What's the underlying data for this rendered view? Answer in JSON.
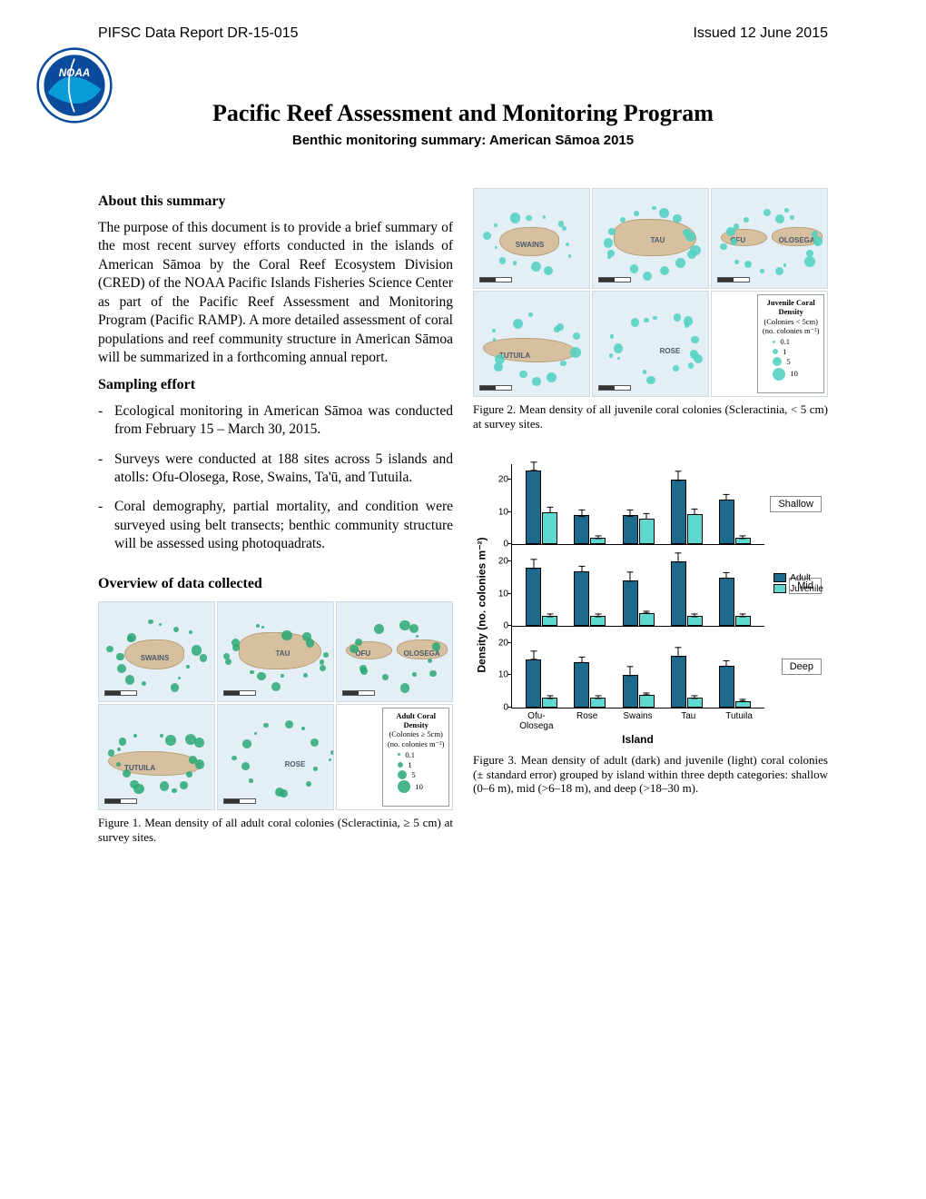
{
  "header": {
    "report_id": "PIFSC Data Report DR-15-015",
    "issued": "Issued 12 June 2015"
  },
  "logo": {
    "outer_color": "#0a4b9c",
    "inner_color": "#0a6acc",
    "text": "NOAA",
    "text_color": "#ffffff"
  },
  "title": "Pacific Reef Assessment and Monitoring Program",
  "subtitle": "Benthic monitoring summary:  American Sāmoa 2015",
  "about_heading": "About this summary",
  "about_text": "The purpose of this document is to provide a brief summary of the most recent survey efforts conducted in the islands of American Sāmoa by the Coral Reef Ecosystem Division (CRED) of the NOAA Pacific Islands Fisheries Science Center as part of the Pacific Reef Assessment and Monitoring Program (Pacific RAMP). A more detailed assessment of coral populations and reef community structure in American Sāmoa will be summarized in a forthcoming annual report.",
  "sampling_heading": "Sampling effort",
  "sampling_items": [
    "Ecological monitoring in American Sāmoa was conducted from February 15 – March 30, 2015.",
    "Surveys were conducted at 188 sites across 5 islands and atolls: Ofu-Olosega, Rose, Swains, Ta'ū, and Tutuila.",
    "Coral demography, partial mortality, and condition were surveyed using belt transects; benthic community structure will be assessed using photoquadrats."
  ],
  "overview_heading": "Overview of data collected",
  "maps": {
    "water_color": "#e4eef5",
    "land_color": "#d7c0a0",
    "land_border": "#b8a078",
    "dot_color_adult": "#2aa876",
    "dot_color_juv": "#4dd0c0",
    "islands": [
      "SWAINS",
      "TAU",
      "OFU",
      "OLOSEGA",
      "TUTUILA",
      "ROSE"
    ],
    "legend_adult": {
      "title": "Adult Coral Density",
      "sub1": "(Colonies ≥ 5cm)",
      "sub2": "(no. colonies m⁻²)",
      "levels": [
        {
          "v": "0.1",
          "r": 1.5
        },
        {
          "v": "1",
          "r": 3
        },
        {
          "v": "5",
          "r": 5
        },
        {
          "v": "10",
          "r": 7
        }
      ]
    },
    "legend_juv": {
      "title": "Juvenile Coral Density",
      "sub1": "(Colonies < 5cm)",
      "sub2": "(no. colonies m⁻²)",
      "levels": [
        {
          "v": "0.1",
          "r": 1.5
        },
        {
          "v": "1",
          "r": 3
        },
        {
          "v": "5",
          "r": 5
        },
        {
          "v": "10",
          "r": 7
        }
      ]
    }
  },
  "fig1_caption": "Figure 1. Mean density of all adult coral colonies (Scleractinia, ≥ 5 cm) at survey sites.",
  "fig2_caption": "Figure 2. Mean density of all juvenile coral colonies (Scleractinia, < 5 cm) at survey sites.",
  "fig3_caption": "Figure 3. Mean density of adult (dark) and juvenile (light) coral colonies (± standard error) grouped by island within three depth categories: shallow (0–6 m), mid (>6–18 m), and deep (>18–30 m).",
  "barchart": {
    "ylabel": "Density (no. colonies m⁻²)",
    "xlabel": "Island",
    "islands": [
      "Ofu-Olosega",
      "Rose",
      "Swains",
      "Tau",
      "Tutuila"
    ],
    "panels": [
      "Shallow",
      "Mid",
      "Deep"
    ],
    "legend": [
      "Adult",
      "Juvenile"
    ],
    "adult_color": "#1d6a8c",
    "juv_color": "#5fd9d0",
    "ymax": 25,
    "yticks": [
      0,
      10,
      20
    ],
    "data": {
      "Shallow": {
        "adult": [
          {
            "v": 23,
            "e": 3
          },
          {
            "v": 9,
            "e": 2
          },
          {
            "v": 9,
            "e": 2
          },
          {
            "v": 20,
            "e": 3
          },
          {
            "v": 14,
            "e": 2
          }
        ],
        "juvenile": [
          {
            "v": 10,
            "e": 2
          },
          {
            "v": 2,
            "e": 1
          },
          {
            "v": 8,
            "e": 2
          },
          {
            "v": 9.5,
            "e": 2
          },
          {
            "v": 2,
            "e": 1
          }
        ]
      },
      "Mid": {
        "adult": [
          {
            "v": 18,
            "e": 3
          },
          {
            "v": 17,
            "e": 2
          },
          {
            "v": 14,
            "e": 3
          },
          {
            "v": 20,
            "e": 3
          },
          {
            "v": 15,
            "e": 2
          }
        ],
        "juvenile": [
          {
            "v": 3,
            "e": 1
          },
          {
            "v": 3,
            "e": 1
          },
          {
            "v": 4,
            "e": 1
          },
          {
            "v": 3,
            "e": 1
          },
          {
            "v": 3,
            "e": 1
          }
        ]
      },
      "Deep": {
        "adult": [
          {
            "v": 15,
            "e": 3
          },
          {
            "v": 14,
            "e": 2
          },
          {
            "v": 10,
            "e": 3
          },
          {
            "v": 16,
            "e": 3
          },
          {
            "v": 13,
            "e": 2
          }
        ],
        "juvenile": [
          {
            "v": 3,
            "e": 1
          },
          {
            "v": 3,
            "e": 1
          },
          {
            "v": 4,
            "e": 1
          },
          {
            "v": 3,
            "e": 1
          },
          {
            "v": 2,
            "e": 1
          }
        ]
      }
    }
  }
}
